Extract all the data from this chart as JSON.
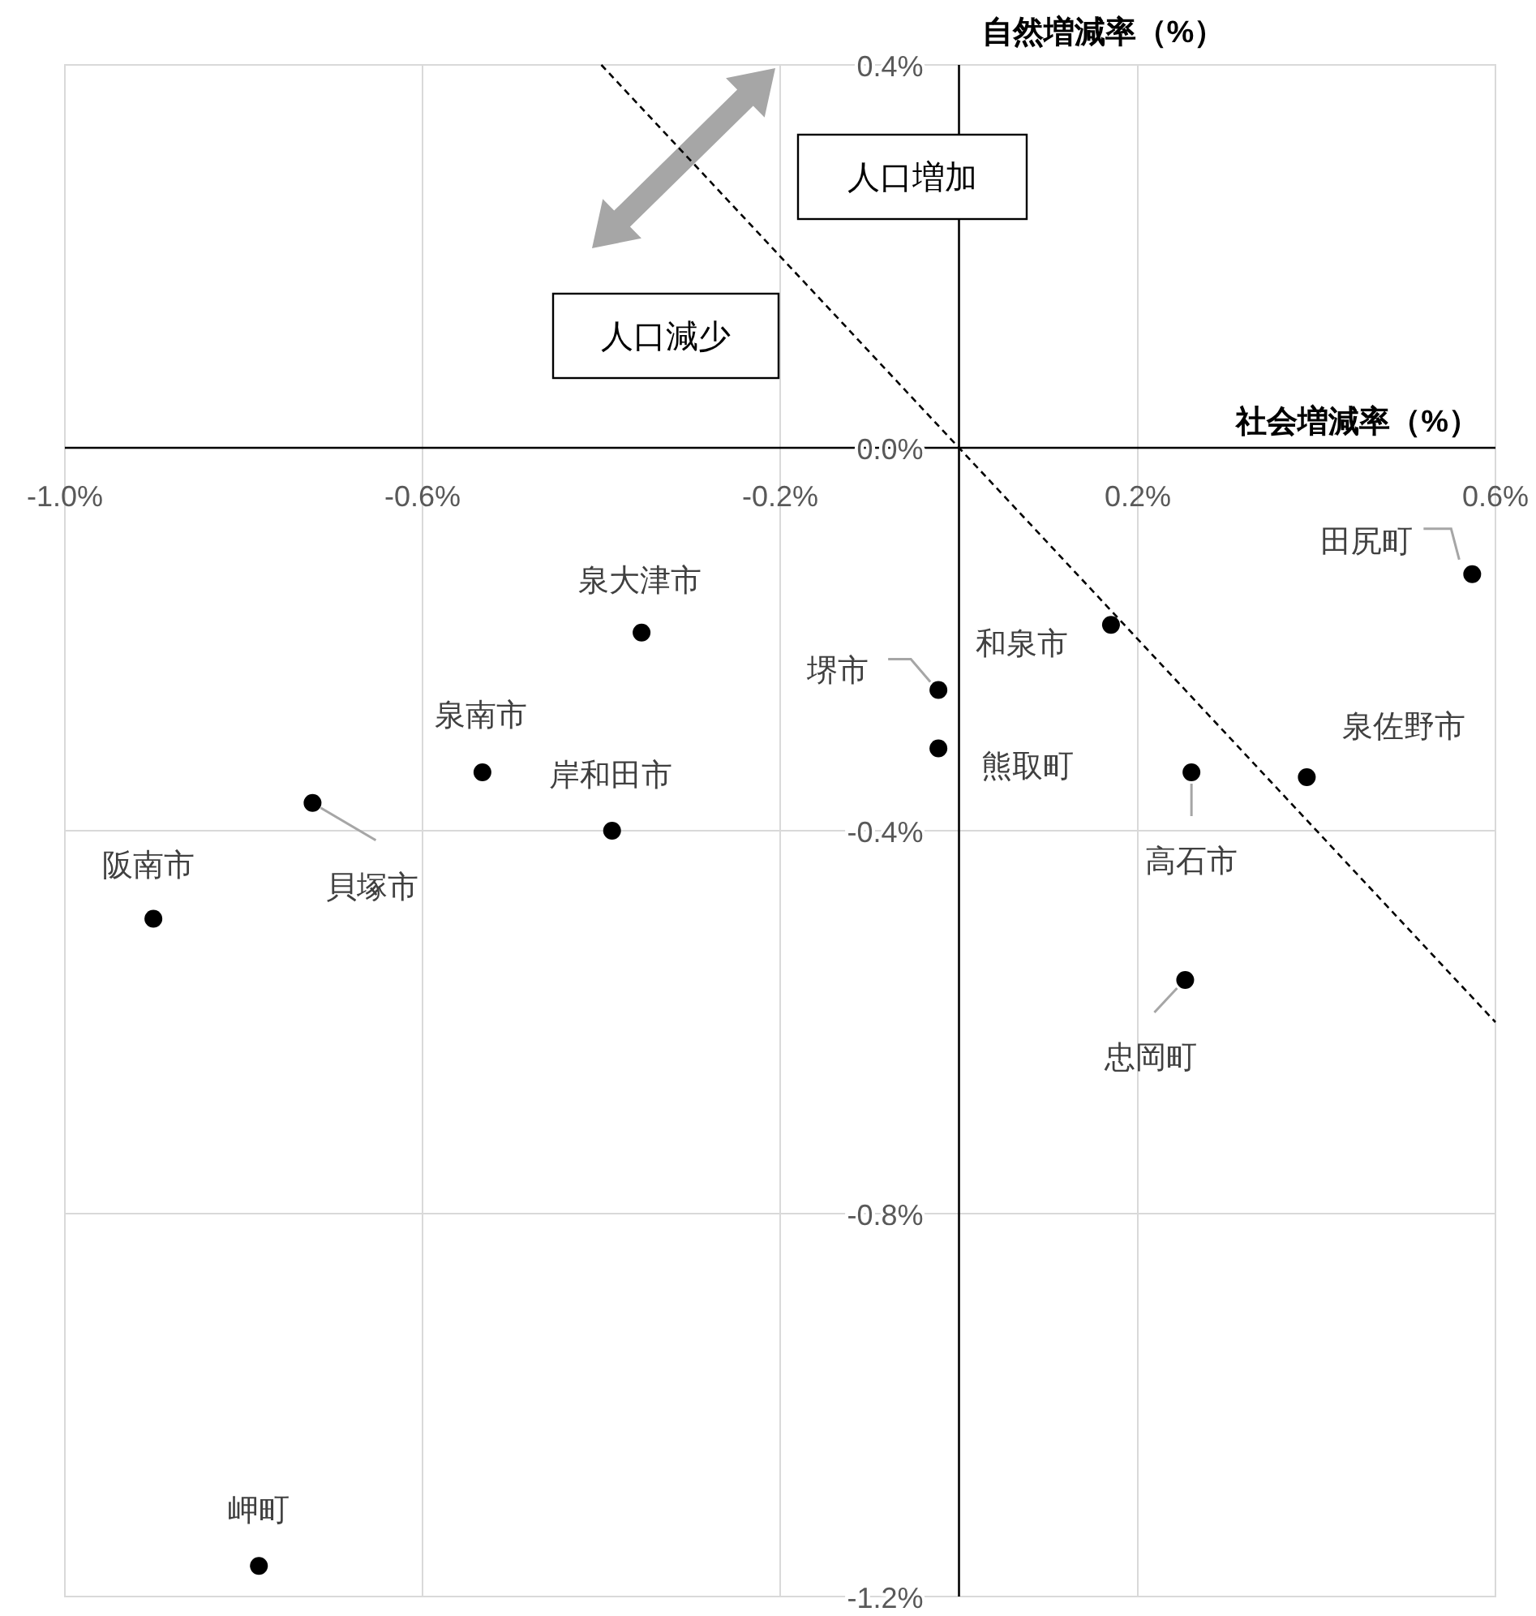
{
  "chart_data": {
    "type": "scatter",
    "xlabel": "社会増減率（%）",
    "ylabel": "自然増減率（%）",
    "xlim": [
      -1.0,
      0.6
    ],
    "ylim": [
      -1.2,
      0.4
    ],
    "xticks": [
      {
        "value": -1.0,
        "label": "-1.0%"
      },
      {
        "value": -0.6,
        "label": "-0.6%"
      },
      {
        "value": -0.2,
        "label": "-0.2%"
      },
      {
        "value": 0.2,
        "label": "0.2%"
      },
      {
        "value": 0.6,
        "label": "0.6%"
      }
    ],
    "yticks": [
      {
        "value": 0.4,
        "label": "0.4%"
      },
      {
        "value": 0.0,
        "label": "0.0%"
      },
      {
        "value": -0.4,
        "label": "-0.4%"
      },
      {
        "value": -0.8,
        "label": "-0.8%"
      },
      {
        "value": -1.2,
        "label": "-1.2%"
      }
    ],
    "grid": true,
    "series": [
      {
        "type": "scatter",
        "marker": "circle",
        "color": "#000000",
        "x": [
          0.574,
          0.17,
          -0.023,
          -0.023,
          0.26,
          0.389,
          0.253,
          -0.355,
          -0.533,
          -0.388,
          -0.723,
          -0.901,
          -0.783
        ],
        "values": [
          -0.132,
          -0.185,
          -0.253,
          -0.314,
          -0.339,
          -0.344,
          -0.556,
          -0.193,
          -0.339,
          -0.4,
          -0.371,
          -0.492,
          -1.168
        ]
      },
      {
        "type": "line",
        "color": "#000000",
        "line_style": "dashed",
        "x": [
          -0.4,
          0.6
        ],
        "values": [
          0.4,
          -0.6
        ]
      }
    ],
    "annotations": [
      {
        "text": "田尻町",
        "x": 0.574,
        "y": -0.132
      },
      {
        "text": "和泉市",
        "x": 0.17,
        "y": -0.185
      },
      {
        "text": "堺市",
        "x": -0.023,
        "y": -0.253
      },
      {
        "text": "熊取町",
        "x": -0.023,
        "y": -0.314
      },
      {
        "text": "高石市",
        "x": 0.26,
        "y": -0.339
      },
      {
        "text": "泉佐野市",
        "x": 0.389,
        "y": -0.344
      },
      {
        "text": "忠岡町",
        "x": 0.253,
        "y": -0.556
      },
      {
        "text": "泉大津市",
        "x": -0.355,
        "y": -0.193
      },
      {
        "text": "泉南市",
        "x": -0.533,
        "y": -0.339
      },
      {
        "text": "岸和田市",
        "x": -0.388,
        "y": -0.4
      },
      {
        "text": "貝塚市",
        "x": -0.723,
        "y": -0.371
      },
      {
        "text": "阪南市",
        "x": -0.901,
        "y": -0.492
      },
      {
        "text": "岬町",
        "x": -0.783,
        "y": -1.168
      },
      "人口増加",
      "人口減少"
    ]
  }
}
